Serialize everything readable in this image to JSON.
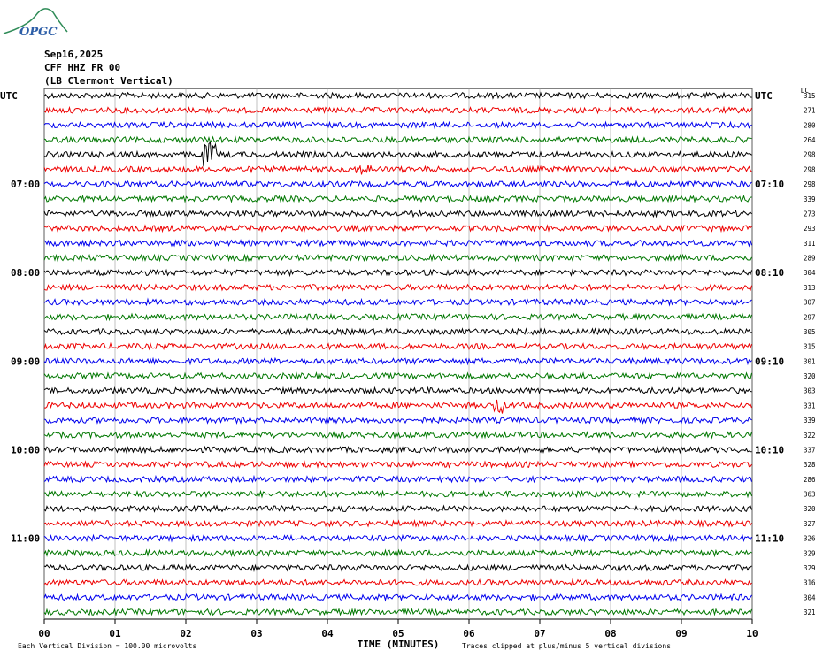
{
  "logo": "OPGC",
  "header": {
    "date": "Sep16,2025",
    "station": "CFF HHZ FR 00",
    "location": "(LB  Clermont Vertical)"
  },
  "left_labels": [
    "UTC",
    "07:00",
    "08:00",
    "09:00",
    "10:00",
    "11:00"
  ],
  "right_labels": [
    "UTC",
    "07:10",
    "08:10",
    "09:10",
    "10:10",
    "11:10"
  ],
  "dc_label": "DC",
  "dc_values": [
    315,
    271,
    280,
    264,
    298,
    298,
    298,
    339,
    273,
    293,
    311,
    289,
    304,
    313,
    307,
    297,
    305,
    315,
    301,
    320,
    303,
    331,
    339,
    322,
    337,
    328,
    286,
    363,
    320,
    327,
    326,
    329,
    329,
    316,
    304,
    321
  ],
  "x_axis": {
    "label": "TIME (MINUTES)",
    "ticks": [
      "00",
      "01",
      "02",
      "03",
      "04",
      "05",
      "06",
      "07",
      "08",
      "09",
      "10"
    ]
  },
  "footer": {
    "scale_note": "Each Vertical Division =  100.00 microvolts",
    "clip_note": "Traces clipped at plus/minus 5 vertical divisions"
  }
}
